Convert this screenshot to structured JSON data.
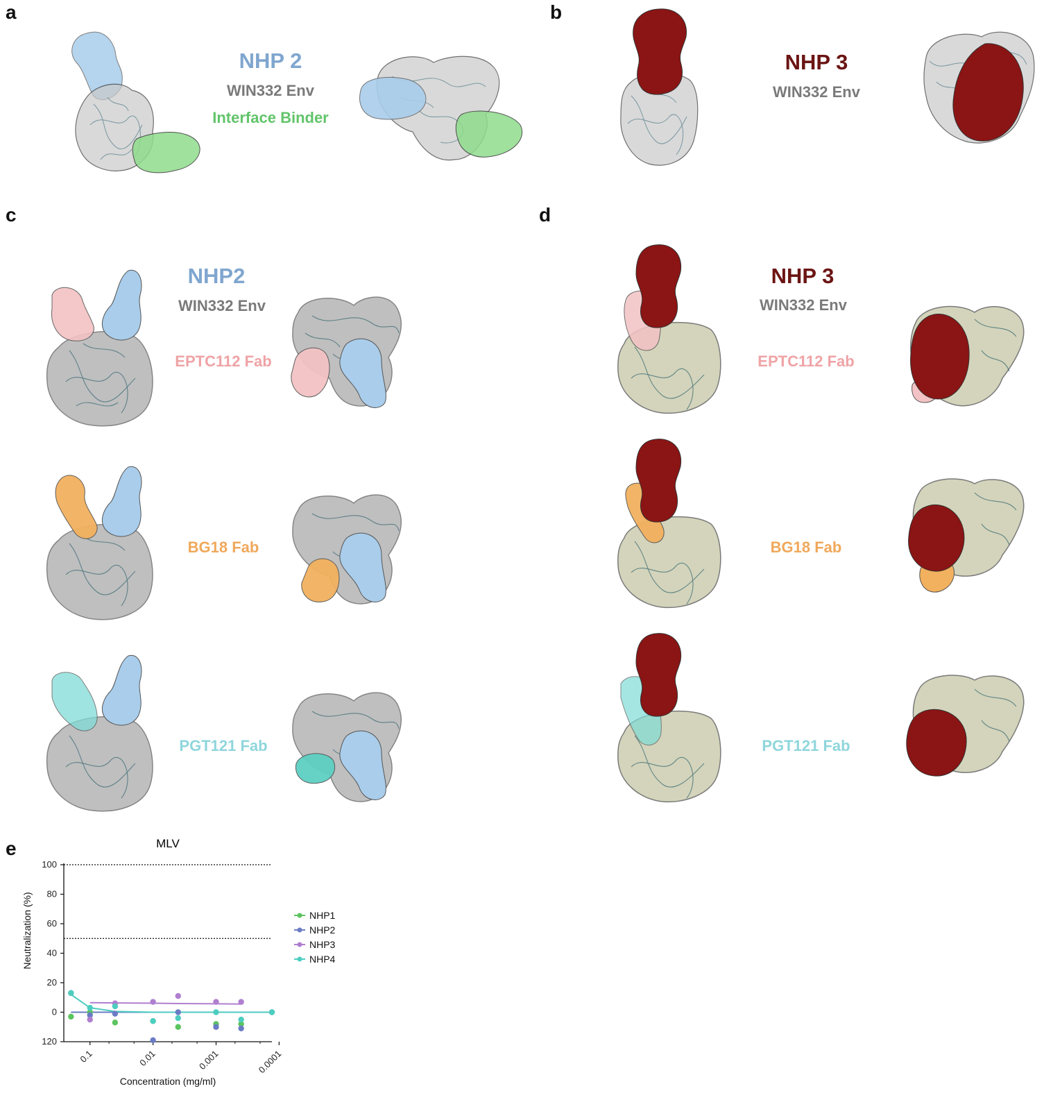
{
  "panels": {
    "a": "a",
    "b": "b",
    "c": "c",
    "d": "d",
    "e": "e"
  },
  "panel_a": {
    "nhp": "NHP 2",
    "env": "WIN332 Env",
    "binder": "Interface Binder"
  },
  "panel_b": {
    "nhp": "NHP 3",
    "env": "WIN332 Env"
  },
  "panel_c": {
    "nhp": "NHP2",
    "env": "WIN332 Env",
    "fab1": "EPTC112 Fab",
    "fab2": "BG18 Fab",
    "fab3": "PGT121 Fab"
  },
  "panel_d": {
    "nhp": "NHP 3",
    "env": "WIN332 Env",
    "fab1": "EPTC112 Fab",
    "fab2": "BG18 Fab",
    "fab3": "PGT121 Fab"
  },
  "colors": {
    "nhp2_blue": "#a9cdeb",
    "nhp3_red": "#8b1414",
    "env_grey": "#c9c9c9",
    "env_olive": "#b7b98e",
    "binder_green": "#8fdc8c",
    "eptc112_pink": "#f3c2c4",
    "bg18_orange": "#f2b15e",
    "pgt121_cyan": "#7fdcd6"
  },
  "chart_data": {
    "type": "scatter",
    "title": "MLV",
    "xlabel": "Concentration (mg/ml)",
    "ylabel": "Neutralization (%)",
    "x_scale": "log-reversed",
    "x_ticks": [
      "0.1",
      "0.01",
      "0.001",
      "0.0001"
    ],
    "y_ticks": [
      "120",
      "0",
      "20",
      "40",
      "60",
      "80",
      "100"
    ],
    "ylim": [
      -20,
      100
    ],
    "reference_lines": [
      100,
      50
    ],
    "legend_position": "right",
    "series": [
      {
        "name": "NHP1",
        "color": "#5cc45f",
        "x": [
          0.2,
          0.1,
          0.04,
          0.01,
          0.004,
          0.001,
          0.0004
        ],
        "y": [
          -3,
          0,
          -7,
          -6,
          -10,
          -8,
          -8
        ],
        "fit": [
          0,
          0,
          0,
          0,
          0,
          0,
          0
        ]
      },
      {
        "name": "NHP2",
        "color": "#6a7cc4",
        "x": [
          0.2,
          0.1,
          0.04,
          0.01,
          0.004,
          0.001,
          0.0004,
          0.00013
        ],
        "y": [
          13,
          -2,
          -1,
          -19,
          0,
          -10,
          -11,
          0
        ],
        "fit": [
          0,
          0,
          0,
          0,
          0,
          0,
          0,
          0
        ]
      },
      {
        "name": "NHP3",
        "color": "#b07fd0",
        "x": [
          0.1,
          0.04,
          0.01,
          0.004,
          0.001,
          0.0004
        ],
        "y": [
          -5,
          6,
          7,
          11,
          7,
          7
        ],
        "fit": [
          6.5,
          6.3,
          6.1,
          5.9,
          5.7,
          5.5
        ]
      },
      {
        "name": "NHP4",
        "color": "#4dcdc0",
        "x": [
          0.2,
          0.1,
          0.04,
          0.01,
          0.004,
          0.001,
          0.0004,
          0.00013
        ],
        "y": [
          13,
          3,
          4,
          -6,
          -4,
          0,
          -5,
          0
        ],
        "fit": [
          12,
          3,
          0.5,
          0,
          0,
          0,
          0,
          0
        ]
      }
    ]
  }
}
